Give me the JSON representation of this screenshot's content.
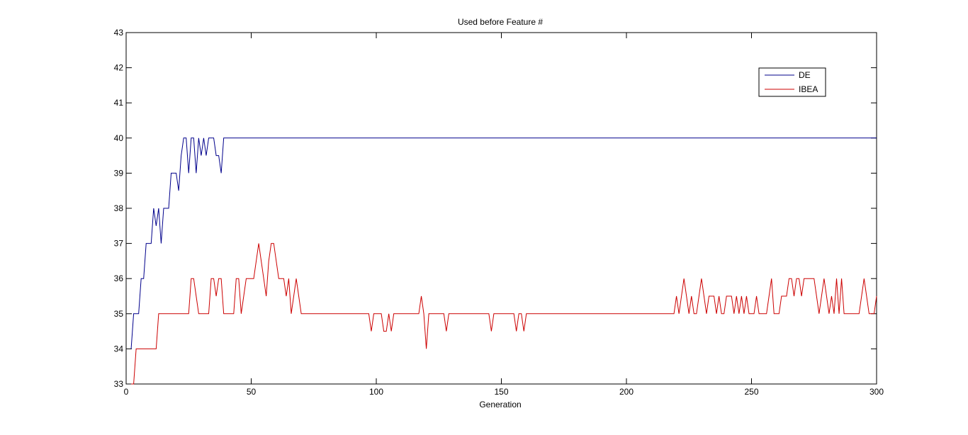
{
  "chart_data": {
    "type": "line",
    "title": "Used before Feature #",
    "xlabel": "Generation",
    "ylabel": "",
    "xlim": [
      0,
      300
    ],
    "ylim": [
      33,
      43
    ],
    "xticks": [
      0,
      50,
      100,
      150,
      200,
      250,
      300
    ],
    "yticks": [
      33,
      34,
      35,
      36,
      37,
      38,
      39,
      40,
      41,
      42,
      43
    ],
    "grid": false,
    "legend_position": "top-right",
    "series": [
      {
        "name": "DE",
        "color": "#00008b",
        "points": [
          [
            2,
            34
          ],
          [
            3,
            35
          ],
          [
            4,
            35
          ],
          [
            5,
            35
          ],
          [
            6,
            36
          ],
          [
            7,
            36
          ],
          [
            8,
            37
          ],
          [
            9,
            37
          ],
          [
            10,
            37
          ],
          [
            11,
            38
          ],
          [
            12,
            37.5
          ],
          [
            13,
            38
          ],
          [
            14,
            37
          ],
          [
            15,
            38
          ],
          [
            16,
            38
          ],
          [
            17,
            38
          ],
          [
            18,
            39
          ],
          [
            19,
            39
          ],
          [
            20,
            39
          ],
          [
            21,
            38.5
          ],
          [
            22,
            39.5
          ],
          [
            23,
            40
          ],
          [
            24,
            40
          ],
          [
            25,
            39
          ],
          [
            26,
            40
          ],
          [
            27,
            40
          ],
          [
            28,
            39
          ],
          [
            29,
            40
          ],
          [
            30,
            39.5
          ],
          [
            31,
            40
          ],
          [
            32,
            39.5
          ],
          [
            33,
            40
          ],
          [
            34,
            40
          ],
          [
            35,
            40
          ],
          [
            36,
            39.5
          ],
          [
            37,
            39.5
          ],
          [
            38,
            39
          ],
          [
            39,
            40
          ],
          [
            40,
            40
          ],
          [
            50,
            40
          ],
          [
            100,
            40
          ],
          [
            150,
            40
          ],
          [
            200,
            40
          ],
          [
            250,
            40
          ],
          [
            300,
            40
          ]
        ]
      },
      {
        "name": "IBEA",
        "color": "#cc0000",
        "points": [
          [
            2,
            33
          ],
          [
            3,
            33
          ],
          [
            4,
            34
          ],
          [
            5,
            34
          ],
          [
            6,
            34
          ],
          [
            7,
            34
          ],
          [
            8,
            34
          ],
          [
            9,
            34
          ],
          [
            10,
            34
          ],
          [
            11,
            34
          ],
          [
            12,
            34
          ],
          [
            13,
            35
          ],
          [
            14,
            35
          ],
          [
            15,
            35
          ],
          [
            16,
            35
          ],
          [
            17,
            35
          ],
          [
            18,
            35
          ],
          [
            19,
            35
          ],
          [
            20,
            35
          ],
          [
            21,
            35
          ],
          [
            22,
            35
          ],
          [
            23,
            35
          ],
          [
            24,
            35
          ],
          [
            25,
            35
          ],
          [
            26,
            36
          ],
          [
            27,
            36
          ],
          [
            28,
            35.5
          ],
          [
            29,
            35
          ],
          [
            30,
            35
          ],
          [
            31,
            35
          ],
          [
            32,
            35
          ],
          [
            33,
            35
          ],
          [
            34,
            36
          ],
          [
            35,
            36
          ],
          [
            36,
            35.5
          ],
          [
            37,
            36
          ],
          [
            38,
            36
          ],
          [
            39,
            35
          ],
          [
            40,
            35
          ],
          [
            41,
            35
          ],
          [
            42,
            35
          ],
          [
            43,
            35
          ],
          [
            44,
            36
          ],
          [
            45,
            36
          ],
          [
            46,
            35
          ],
          [
            47,
            35.5
          ],
          [
            48,
            36
          ],
          [
            49,
            36
          ],
          [
            50,
            36
          ],
          [
            51,
            36
          ],
          [
            52,
            36.5
          ],
          [
            53,
            37
          ],
          [
            54,
            36.5
          ],
          [
            55,
            36
          ],
          [
            56,
            35.5
          ],
          [
            57,
            36.5
          ],
          [
            58,
            37
          ],
          [
            59,
            37
          ],
          [
            60,
            36.5
          ],
          [
            61,
            36
          ],
          [
            62,
            36
          ],
          [
            63,
            36
          ],
          [
            64,
            35.5
          ],
          [
            65,
            36
          ],
          [
            66,
            35
          ],
          [
            67,
            35.5
          ],
          [
            68,
            36
          ],
          [
            69,
            35.5
          ],
          [
            70,
            35
          ],
          [
            75,
            35
          ],
          [
            80,
            35
          ],
          [
            85,
            35
          ],
          [
            90,
            35
          ],
          [
            95,
            35
          ],
          [
            97,
            35
          ],
          [
            98,
            34.5
          ],
          [
            99,
            35
          ],
          [
            100,
            35
          ],
          [
            101,
            35
          ],
          [
            102,
            35
          ],
          [
            103,
            34.5
          ],
          [
            104,
            34.5
          ],
          [
            105,
            35
          ],
          [
            106,
            34.5
          ],
          [
            107,
            35
          ],
          [
            108,
            35
          ],
          [
            110,
            35
          ],
          [
            115,
            35
          ],
          [
            117,
            35
          ],
          [
            118,
            35.5
          ],
          [
            119,
            35
          ],
          [
            120,
            34
          ],
          [
            121,
            35
          ],
          [
            122,
            35
          ],
          [
            124,
            35
          ],
          [
            126,
            35
          ],
          [
            127,
            35
          ],
          [
            128,
            34.5
          ],
          [
            129,
            35
          ],
          [
            130,
            35
          ],
          [
            135,
            35
          ],
          [
            140,
            35
          ],
          [
            144,
            35
          ],
          [
            145,
            35
          ],
          [
            146,
            34.5
          ],
          [
            147,
            35
          ],
          [
            148,
            35
          ],
          [
            150,
            35
          ],
          [
            154,
            35
          ],
          [
            155,
            35
          ],
          [
            156,
            34.5
          ],
          [
            157,
            35
          ],
          [
            158,
            35
          ],
          [
            159,
            34.5
          ],
          [
            160,
            35
          ],
          [
            161,
            35
          ],
          [
            165,
            35
          ],
          [
            170,
            35
          ],
          [
            175,
            35
          ],
          [
            180,
            35
          ],
          [
            185,
            35
          ],
          [
            190,
            35
          ],
          [
            195,
            35
          ],
          [
            200,
            35
          ],
          [
            205,
            35
          ],
          [
            210,
            35
          ],
          [
            215,
            35
          ],
          [
            219,
            35
          ],
          [
            220,
            35.5
          ],
          [
            221,
            35
          ],
          [
            222,
            35.5
          ],
          [
            223,
            36
          ],
          [
            224,
            35.5
          ],
          [
            225,
            35
          ],
          [
            226,
            35.5
          ],
          [
            227,
            35
          ],
          [
            228,
            35
          ],
          [
            229,
            35.5
          ],
          [
            230,
            36
          ],
          [
            231,
            35.5
          ],
          [
            232,
            35
          ],
          [
            233,
            35.5
          ],
          [
            234,
            35.5
          ],
          [
            235,
            35.5
          ],
          [
            236,
            35
          ],
          [
            237,
            35.5
          ],
          [
            238,
            35
          ],
          [
            239,
            35
          ],
          [
            240,
            35.5
          ],
          [
            241,
            35.5
          ],
          [
            242,
            35.5
          ],
          [
            243,
            35
          ],
          [
            244,
            35.5
          ],
          [
            245,
            35
          ],
          [
            246,
            35.5
          ],
          [
            247,
            35
          ],
          [
            248,
            35.5
          ],
          [
            249,
            35
          ],
          [
            250,
            35
          ],
          [
            251,
            35
          ],
          [
            252,
            35.5
          ],
          [
            253,
            35
          ],
          [
            254,
            35
          ],
          [
            255,
            35
          ],
          [
            256,
            35
          ],
          [
            257,
            35.5
          ],
          [
            258,
            36
          ],
          [
            259,
            35
          ],
          [
            260,
            35
          ],
          [
            261,
            35
          ],
          [
            262,
            35.5
          ],
          [
            263,
            35.5
          ],
          [
            264,
            35.5
          ],
          [
            265,
            36
          ],
          [
            266,
            36
          ],
          [
            267,
            35.5
          ],
          [
            268,
            36
          ],
          [
            269,
            36
          ],
          [
            270,
            35.5
          ],
          [
            271,
            36
          ],
          [
            272,
            36
          ],
          [
            273,
            36
          ],
          [
            274,
            36
          ],
          [
            275,
            36
          ],
          [
            276,
            35.5
          ],
          [
            277,
            35
          ],
          [
            278,
            35.5
          ],
          [
            279,
            36
          ],
          [
            280,
            35.5
          ],
          [
            281,
            35
          ],
          [
            282,
            35.5
          ],
          [
            283,
            35
          ],
          [
            284,
            36
          ],
          [
            285,
            35
          ],
          [
            286,
            36
          ],
          [
            287,
            35
          ],
          [
            288,
            35
          ],
          [
            289,
            35
          ],
          [
            290,
            35
          ],
          [
            291,
            35
          ],
          [
            292,
            35
          ],
          [
            293,
            35
          ],
          [
            294,
            35.5
          ],
          [
            295,
            36
          ],
          [
            296,
            35.5
          ],
          [
            297,
            35
          ],
          [
            298,
            35
          ],
          [
            299,
            35
          ],
          [
            300,
            35.5
          ]
        ]
      }
    ]
  }
}
